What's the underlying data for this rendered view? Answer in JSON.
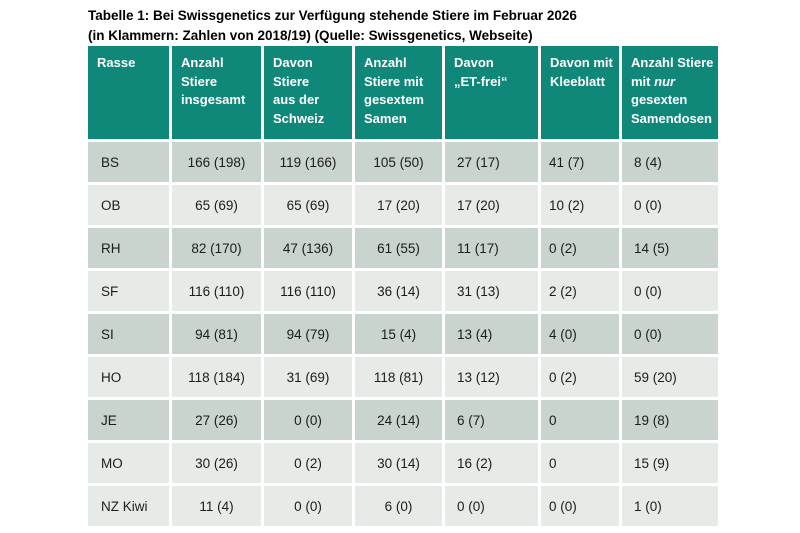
{
  "title": {
    "line1": "Tabelle 1: Bei Swissgenetics zur Verfügung stehende Stiere im Februar 2026",
    "line2": "(in Klammern: Zahlen von 2018/19) (Quelle: Swissgenetics, Webseite)"
  },
  "colors": {
    "header_bg": "#0f8779",
    "header_text": "#ffffff",
    "row_dark": "#c9d4ce",
    "row_light": "#e6ebe7",
    "body_text": "#1c1c1a"
  },
  "table": {
    "headers": [
      "Rasse",
      "Anzahl\nStiere\ninsgesamt",
      "Davon\nStiere\naus der\nSchweiz",
      "Anzahl\nStiere mit\ngesextem\nSamen",
      "Davon\n„ET-frei“",
      "Davon mit\nKleeblatt",
      "Anzahl Stiere\nmit *nur*\ngesexten\nSamendosen"
    ],
    "rows": [
      {
        "rasse": "BS",
        "shade": "dark",
        "values": [
          "166 (198)",
          "119 (166)",
          "105 (50)",
          "27 (17)",
          "41 (7)",
          "8 (4)"
        ]
      },
      {
        "rasse": "OB",
        "shade": "light",
        "values": [
          "65 (69)",
          "65 (69)",
          "17 (20)",
          "17 (20)",
          "10 (2)",
          "0 (0)"
        ]
      },
      {
        "rasse": "RH",
        "shade": "dark",
        "values": [
          "82 (170)",
          "47 (136)",
          "61 (55)",
          "11 (17)",
          "0 (2)",
          "14 (5)"
        ]
      },
      {
        "rasse": "SF",
        "shade": "light",
        "values": [
          "116 (110)",
          "116 (110)",
          "36 (14)",
          "31 (13)",
          "2 (2)",
          "0 (0)"
        ]
      },
      {
        "rasse": "SI",
        "shade": "dark",
        "values": [
          "94 (81)",
          "94 (79)",
          "15 (4)",
          "13 (4)",
          "4 (0)",
          "0 (0)"
        ]
      },
      {
        "rasse": "HO",
        "shade": "light",
        "values": [
          "118 (184)",
          "31 (69)",
          "118 (81)",
          "13 (12)",
          "0 (2)",
          "59 (20)"
        ]
      },
      {
        "rasse": "JE",
        "shade": "dark",
        "values": [
          "27 (26)",
          "0 (0)",
          "24 (14)",
          "6 (7)",
          "0",
          "19 (8)"
        ]
      },
      {
        "rasse": "MO",
        "shade": "light",
        "values": [
          "30 (26)",
          "0 (2)",
          "30 (14)",
          "16 (2)",
          "0",
          "15 (9)"
        ]
      },
      {
        "rasse": "NZ Kiwi",
        "shade": "light",
        "values": [
          "11 (4)",
          "0 (0)",
          "6 (0)",
          "0 (0)",
          "0 (0)",
          "1 (0)"
        ]
      }
    ]
  }
}
